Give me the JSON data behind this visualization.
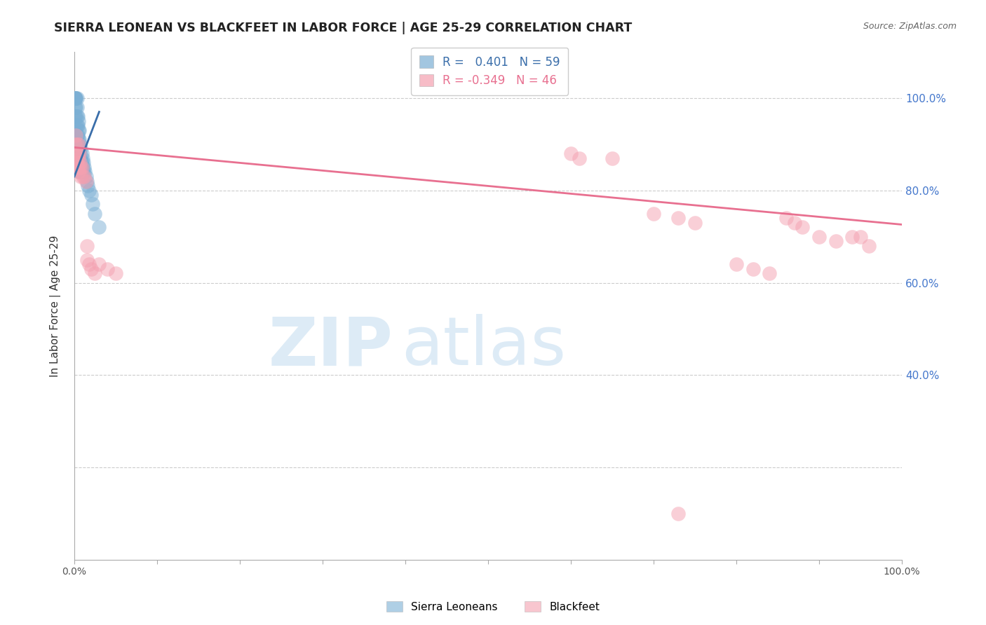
{
  "title": "SIERRA LEONEAN VS BLACKFEET IN LABOR FORCE | AGE 25-29 CORRELATION CHART",
  "source": "Source: ZipAtlas.com",
  "ylabel": "In Labor Force | Age 25-29",
  "xlim": [
    0.0,
    1.0
  ],
  "ylim": [
    0.0,
    1.1
  ],
  "right_ytick_labels": [
    "100.0%",
    "80.0%",
    "60.0%",
    "40.0%"
  ],
  "right_ytick_vals": [
    1.0,
    0.8,
    0.6,
    0.4
  ],
  "sierra_R": 0.401,
  "sierra_N": 59,
  "blackfeet_R": -0.349,
  "blackfeet_N": 46,
  "sierra_color": "#7BAFD4",
  "blackfeet_color": "#F4A0B0",
  "sierra_line_color": "#3A6EAA",
  "blackfeet_line_color": "#E87090",
  "background_color": "#FFFFFF",
  "grid_color": "#CCCCCC",
  "sierra_x": [
    0.001,
    0.001,
    0.001,
    0.001,
    0.001,
    0.002,
    0.002,
    0.002,
    0.002,
    0.002,
    0.002,
    0.003,
    0.003,
    0.003,
    0.003,
    0.003,
    0.003,
    0.003,
    0.004,
    0.004,
    0.004,
    0.004,
    0.004,
    0.005,
    0.005,
    0.005,
    0.005,
    0.005,
    0.005,
    0.006,
    0.006,
    0.006,
    0.006,
    0.006,
    0.006,
    0.007,
    0.007,
    0.007,
    0.007,
    0.008,
    0.008,
    0.008,
    0.009,
    0.009,
    0.009,
    0.01,
    0.01,
    0.011,
    0.011,
    0.012,
    0.013,
    0.014,
    0.015,
    0.016,
    0.018,
    0.02,
    0.022,
    0.025,
    0.03
  ],
  "sierra_y": [
    1.0,
    1.0,
    1.0,
    0.98,
    0.96,
    1.0,
    1.0,
    0.98,
    0.96,
    0.94,
    0.92,
    1.0,
    0.98,
    0.96,
    0.94,
    0.92,
    0.9,
    0.88,
    0.96,
    0.94,
    0.92,
    0.9,
    0.88,
    0.95,
    0.93,
    0.91,
    0.89,
    0.87,
    0.86,
    0.93,
    0.91,
    0.89,
    0.87,
    0.86,
    0.84,
    0.9,
    0.88,
    0.86,
    0.84,
    0.89,
    0.87,
    0.85,
    0.88,
    0.86,
    0.84,
    0.87,
    0.85,
    0.86,
    0.84,
    0.85,
    0.84,
    0.83,
    0.82,
    0.81,
    0.8,
    0.79,
    0.77,
    0.75,
    0.72
  ],
  "blackfeet_x": [
    0.001,
    0.002,
    0.002,
    0.003,
    0.003,
    0.003,
    0.004,
    0.004,
    0.005,
    0.005,
    0.005,
    0.006,
    0.006,
    0.007,
    0.008,
    0.008,
    0.009,
    0.01,
    0.012,
    0.014,
    0.015,
    0.015,
    0.018,
    0.02,
    0.025,
    0.03,
    0.04,
    0.05,
    0.6,
    0.61,
    0.65,
    0.7,
    0.73,
    0.75,
    0.8,
    0.82,
    0.84,
    0.86,
    0.87,
    0.88,
    0.9,
    0.92,
    0.94,
    0.95,
    0.96,
    0.73
  ],
  "blackfeet_y": [
    0.9,
    0.92,
    0.88,
    0.9,
    0.87,
    0.86,
    0.88,
    0.85,
    0.9,
    0.87,
    0.84,
    0.88,
    0.85,
    0.86,
    0.85,
    0.83,
    0.85,
    0.83,
    0.83,
    0.82,
    0.68,
    0.65,
    0.64,
    0.63,
    0.62,
    0.64,
    0.63,
    0.62,
    0.88,
    0.87,
    0.87,
    0.75,
    0.74,
    0.73,
    0.64,
    0.63,
    0.62,
    0.74,
    0.73,
    0.72,
    0.7,
    0.69,
    0.7,
    0.7,
    0.68,
    0.1
  ],
  "blackfeet_line_x": [
    0.0,
    1.0
  ],
  "blackfeet_line_y": [
    0.893,
    0.726
  ],
  "sierra_line_x": [
    0.0,
    0.03
  ],
  "sierra_line_y": [
    0.83,
    0.97
  ]
}
